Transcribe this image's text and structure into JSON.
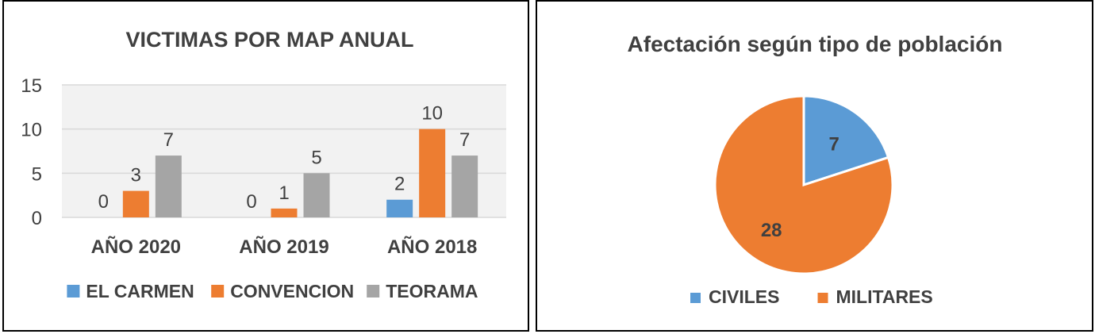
{
  "chart_data": [
    {
      "type": "bar",
      "title": "VICTIMAS POR MAP ANUAL",
      "categories": [
        "AÑO 2020",
        "AÑO 2019",
        "AÑO 2018"
      ],
      "series": [
        {
          "name": "EL CARMEN",
          "values": [
            0,
            0,
            2
          ],
          "color": "#5B9BD5"
        },
        {
          "name": "CONVENCION",
          "values": [
            3,
            1,
            10
          ],
          "color": "#ED7D31"
        },
        {
          "name": "TEORAMA",
          "values": [
            7,
            5,
            7
          ],
          "color": "#A5A5A5"
        }
      ],
      "ylim": [
        0,
        15
      ],
      "yticks": [
        0,
        5,
        10,
        15
      ],
      "grid": true,
      "legend": "bottom"
    },
    {
      "type": "pie",
      "title": "Afectación según tipo de población",
      "labels": [
        "CIVILES",
        "MILITARES"
      ],
      "values": [
        7,
        28
      ],
      "colors": [
        "#5B9BD5",
        "#ED7D31"
      ],
      "legend": "bottom"
    }
  ]
}
